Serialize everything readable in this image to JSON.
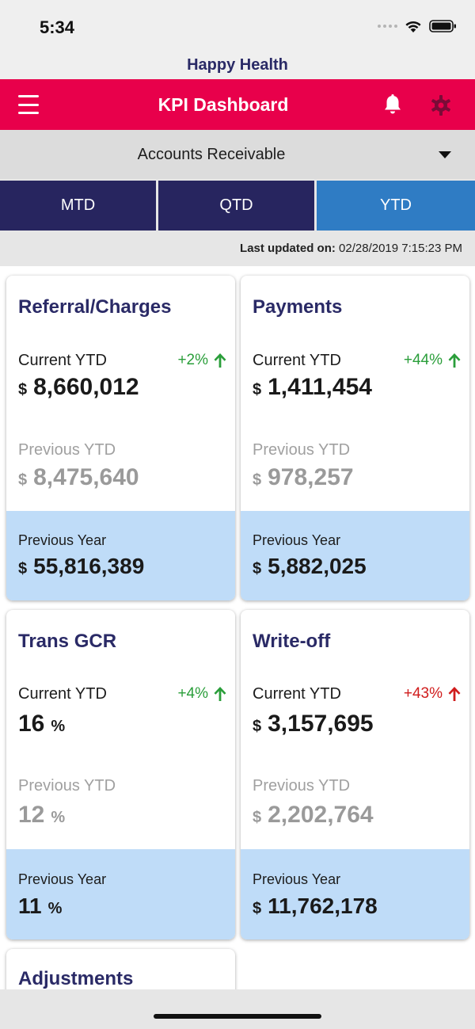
{
  "status": {
    "time": "5:34"
  },
  "app": {
    "title": "Happy Health"
  },
  "header": {
    "title": "KPI Dashboard"
  },
  "selector": {
    "value": "Accounts Receivable"
  },
  "tabs": [
    "MTD",
    "QTD",
    "YTD"
  ],
  "active_tab": "YTD",
  "updated": {
    "label": "Last updated on:",
    "value": "02/28/2019 7:15:23 PM"
  },
  "colors": {
    "header": "#e8004b",
    "tab": "#27255f",
    "tab_active": "#2f7cc4",
    "positive": "#2a9e3a",
    "negative": "#d01c1c",
    "previous_year_band": "#bfdcf8"
  },
  "cards": [
    {
      "title": "Referral/Charges",
      "current_label": "Current YTD",
      "trend": "+2%",
      "trend_color": "green",
      "current_prefix": "$",
      "current_value": "8,660,012",
      "current_unit": "",
      "previous_label": "Previous YTD",
      "previous_prefix": "$",
      "previous_value": "8,475,640",
      "previous_unit": "",
      "py_label": "Previous Year",
      "py_prefix": "$",
      "py_value": "55,816,389",
      "py_unit": ""
    },
    {
      "title": "Payments",
      "current_label": "Current YTD",
      "trend": "+44%",
      "trend_color": "green",
      "current_prefix": "$",
      "current_value": "1,411,454",
      "current_unit": "",
      "previous_label": "Previous YTD",
      "previous_prefix": "$",
      "previous_value": "978,257",
      "previous_unit": "",
      "py_label": "Previous Year",
      "py_prefix": "$",
      "py_value": "5,882,025",
      "py_unit": ""
    },
    {
      "title": "Trans GCR",
      "current_label": "Current YTD",
      "trend": "+4%",
      "trend_color": "green",
      "current_prefix": "",
      "current_value": "16",
      "current_unit": "%",
      "previous_label": "Previous YTD",
      "previous_prefix": "",
      "previous_value": "12",
      "previous_unit": "%",
      "py_label": "Previous Year",
      "py_prefix": "",
      "py_value": "11",
      "py_unit": "%"
    },
    {
      "title": "Write-off",
      "current_label": "Current YTD",
      "trend": "+43%",
      "trend_color": "red",
      "current_prefix": "$",
      "current_value": "3,157,695",
      "current_unit": "",
      "previous_label": "Previous YTD",
      "previous_prefix": "$",
      "previous_value": "2,202,764",
      "previous_unit": "",
      "py_label": "Previous Year",
      "py_prefix": "$",
      "py_value": "11,762,178",
      "py_unit": ""
    },
    {
      "title": "Adjustments"
    }
  ]
}
